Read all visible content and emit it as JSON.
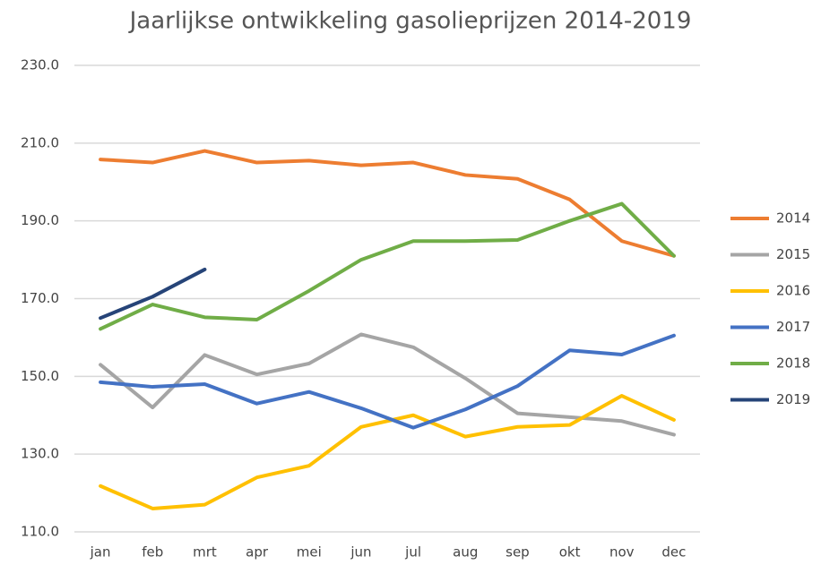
{
  "chart_data": {
    "type": "line",
    "title": "Jaarlijkse ontwikkeling gasolieprijzen 2014-2019",
    "categories": [
      "jan",
      "feb",
      "mrt",
      "apr",
      "mei",
      "jun",
      "jul",
      "aug",
      "sep",
      "okt",
      "nov",
      "dec"
    ],
    "series": [
      {
        "name": "2014",
        "color": "#ed7d31",
        "values": [
          205.8,
          205.0,
          208.0,
          205.0,
          205.5,
          204.3,
          205.0,
          201.8,
          200.8,
          195.5,
          184.8,
          181.0
        ]
      },
      {
        "name": "2015",
        "color": "#a5a5a5",
        "values": [
          153.0,
          142.0,
          155.5,
          150.5,
          153.3,
          160.8,
          157.5,
          149.5,
          140.5,
          139.5,
          138.5,
          135.0
        ]
      },
      {
        "name": "2016",
        "color": "#ffc000",
        "values": [
          121.8,
          116.0,
          117.0,
          124.0,
          127.0,
          137.0,
          140.0,
          134.5,
          137.0,
          137.5,
          145.0,
          138.8
        ]
      },
      {
        "name": "2017",
        "color": "#4472c4",
        "values": [
          148.5,
          147.3,
          148.0,
          143.0,
          146.0,
          141.8,
          136.8,
          141.5,
          147.5,
          156.7,
          155.6,
          160.5
        ]
      },
      {
        "name": "2018",
        "color": "#70ad47",
        "values": [
          162.2,
          168.5,
          165.2,
          164.6,
          172.0,
          180.0,
          184.8,
          184.8,
          185.1,
          190.0,
          194.4,
          181.0
        ]
      },
      {
        "name": "2019",
        "color": "#264478",
        "values": [
          165.0,
          170.5,
          177.5,
          null,
          null,
          null,
          null,
          null,
          null,
          null,
          null,
          null
        ]
      }
    ],
    "ylim": [
      110,
      230
    ],
    "yticks": [
      {
        "value": 110,
        "label": "110.0"
      },
      {
        "value": 130,
        "label": "130.0"
      },
      {
        "value": 150,
        "label": "150.0"
      },
      {
        "value": 170,
        "label": "170.0"
      },
      {
        "value": 190,
        "label": "190.0"
      },
      {
        "value": 210,
        "label": "210.0"
      },
      {
        "value": 230,
        "label": "230.0"
      }
    ],
    "grid": true,
    "legend": "right"
  }
}
